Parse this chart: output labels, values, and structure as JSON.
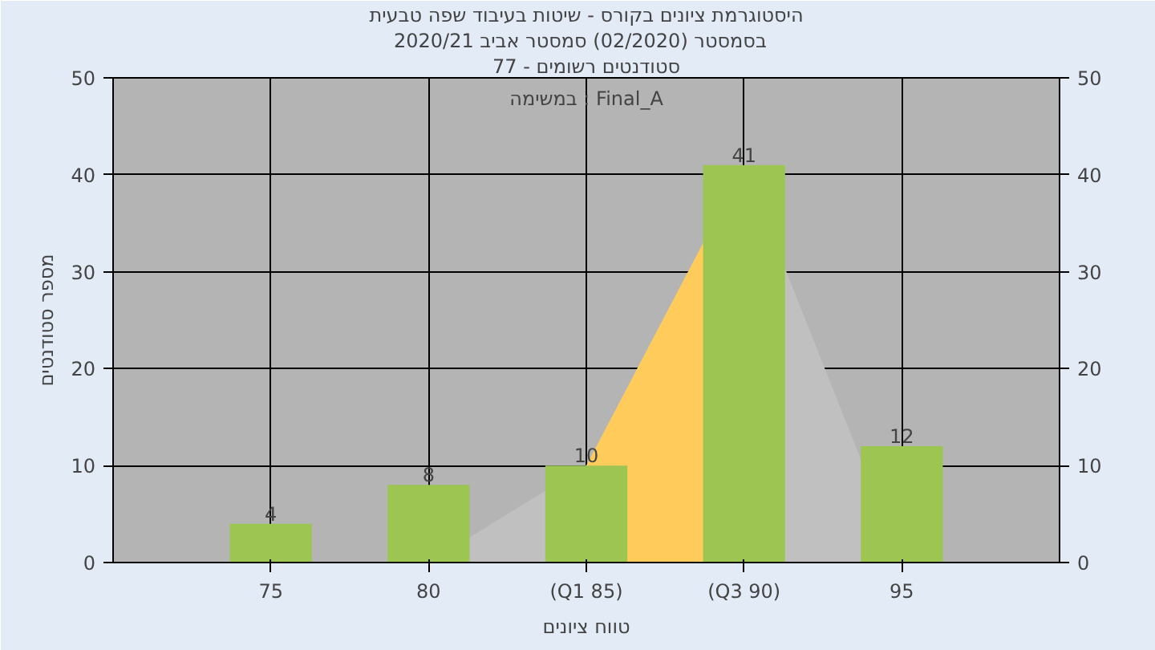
{
  "chart_data": {
    "type": "bar",
    "title": "היסטוגרמת ציונים בקורס - שיטות בעיבוד שפה טבעית",
    "subtitle": "בסמסטר  (02/2020)  סמסטר אביב 2020/21",
    "xlabel": "טווח ציונים",
    "ylabel": "מספר סטודנטים",
    "categories": [
      "75",
      "80",
      "(Q1 85)",
      "(Q3 90)",
      "95"
    ],
    "series": [
      {
        "type": "area",
        "color": "#c0c0c0",
        "values": [
          0,
          0,
          10,
          41,
          0
        ]
      },
      {
        "type": "area",
        "color": "#ffcc5c",
        "values": [
          null,
          null,
          10,
          41,
          null
        ]
      },
      {
        "color": "#9cc552",
        "values": [
          4,
          8,
          10,
          41,
          12
        ],
        "value_labels": [
          "4",
          "8",
          "10",
          "41",
          "12"
        ]
      }
    ],
    "ylim": [
      0,
      50
    ],
    "yticks": [
      0,
      10,
      20,
      30,
      40,
      50
    ],
    "y2lim": [
      0,
      50
    ],
    "y2ticks": [
      0,
      10,
      20,
      30,
      40,
      50
    ],
    "grid": true,
    "annotations": [
      "סטודנטים רשומים - 77",
      "במשימה : Final_A"
    ]
  }
}
